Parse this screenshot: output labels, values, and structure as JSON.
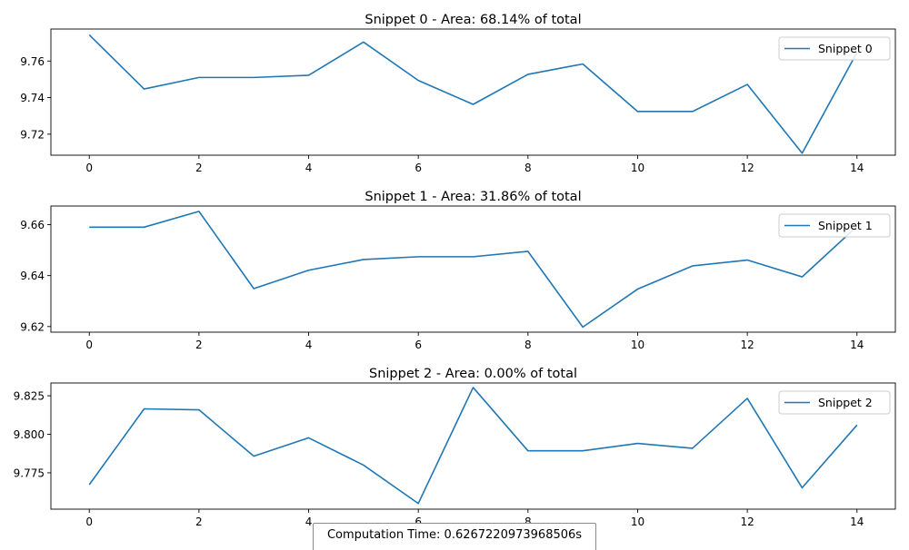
{
  "chart_data": [
    {
      "type": "line",
      "title": "Snippet 0 - Area: 68.14% of total",
      "xlabel": "",
      "ylabel": "",
      "x": [
        0,
        1,
        2,
        3,
        4,
        5,
        6,
        7,
        8,
        9,
        10,
        11,
        12,
        13,
        14
      ],
      "xticks": [
        0,
        2,
        4,
        6,
        8,
        10,
        12,
        14
      ],
      "xlim": [
        -0.7,
        14.7
      ],
      "ylim": [
        9.7085,
        9.7775
      ],
      "yticks": [
        9.72,
        9.74,
        9.76
      ],
      "ytick_decimals": 2,
      "grid": false,
      "legend_position": "top-right",
      "series": [
        {
          "name": "Snippet 0",
          "values": [
            9.7743,
            9.7447,
            9.751,
            9.751,
            9.7522,
            9.7704,
            9.7494,
            9.7363,
            9.7527,
            9.7584,
            9.7324,
            9.7324,
            9.7472,
            9.7096,
            9.7647
          ]
        }
      ]
    },
    {
      "type": "line",
      "title": "Snippet 1 - Area: 31.86% of total",
      "xlabel": "",
      "ylabel": "",
      "x": [
        0,
        1,
        2,
        3,
        4,
        5,
        6,
        7,
        8,
        9,
        10,
        11,
        12,
        13,
        14
      ],
      "xticks": [
        0,
        2,
        4,
        6,
        8,
        10,
        12,
        14
      ],
      "xlim": [
        -0.7,
        14.7
      ],
      "ylim": [
        9.6178,
        9.6673
      ],
      "yticks": [
        9.62,
        9.64,
        9.66
      ],
      "ytick_decimals": 2,
      "grid": false,
      "legend_position": "top-right",
      "series": [
        {
          "name": "Snippet 1",
          "values": [
            9.659,
            9.659,
            9.6652,
            9.6349,
            9.6421,
            9.6463,
            9.6474,
            9.6474,
            9.6495,
            9.6198,
            9.6347,
            9.6438,
            9.6461,
            9.6395,
            9.6593
          ]
        }
      ]
    },
    {
      "type": "line",
      "title": "Snippet 2 - Area: 0.00% of total",
      "xlabel": "",
      "ylabel": "",
      "x": [
        0,
        1,
        2,
        3,
        4,
        5,
        6,
        7,
        8,
        9,
        10,
        11,
        12,
        13,
        14
      ],
      "xticks": [
        0,
        2,
        4,
        6,
        8,
        10,
        12,
        14
      ],
      "xlim": [
        -0.7,
        14.7
      ],
      "ylim": [
        9.7514,
        9.8333
      ],
      "yticks": [
        9.775,
        9.8,
        9.825
      ],
      "ytick_decimals": 3,
      "grid": false,
      "legend_position": "top-right",
      "series": [
        {
          "name": "Snippet 2",
          "values": [
            9.7673,
            9.8165,
            9.8159,
            9.7858,
            9.7977,
            9.78,
            9.7551,
            9.8304,
            9.7893,
            9.7893,
            9.7941,
            9.7909,
            9.8233,
            9.7653,
            9.806
          ]
        }
      ]
    }
  ],
  "footer": {
    "computation_time_text": "Computation Time: 0.6267220973968506s"
  },
  "colors": {
    "series": "#1f77b4",
    "axes": "#000000",
    "legend_border": "#cccccc"
  }
}
